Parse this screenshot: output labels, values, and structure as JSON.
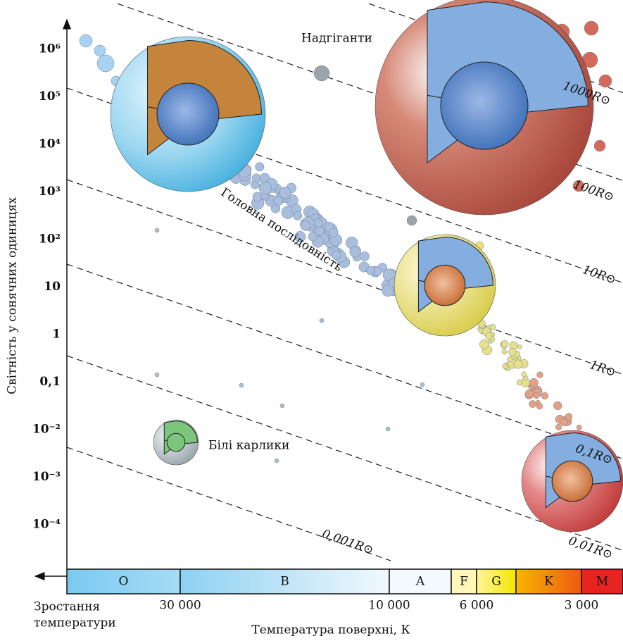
{
  "y_axis_label": "Світність у сонячних одиницях",
  "y_ticks": [
    "10⁶",
    "10⁵",
    "10⁴",
    "10³",
    "10²",
    "10",
    "1",
    "0,1",
    "10⁻²",
    "10⁻³",
    "10⁻⁴"
  ],
  "x_axis_label": "Температура поверхні, К",
  "x_ticks": [
    "30 000",
    "10 000",
    "6 000",
    "3 000"
  ],
  "temperature_arrow_label": [
    "Зростання",
    "температури"
  ],
  "spectral_classes": [
    "O",
    "B",
    "A",
    "F",
    "G",
    "K",
    "M"
  ],
  "radius_lines": [
    "1000R⊙",
    "100R⊙",
    "10R⊙",
    "1R⊙",
    "0,1R⊙",
    "0,01R⊙",
    "0,001R⊙"
  ],
  "regions": {
    "supergiants": "Надгіганти",
    "main_sequence": "Головна послідовність",
    "white_dwarfs": "Білі карлики"
  }
}
